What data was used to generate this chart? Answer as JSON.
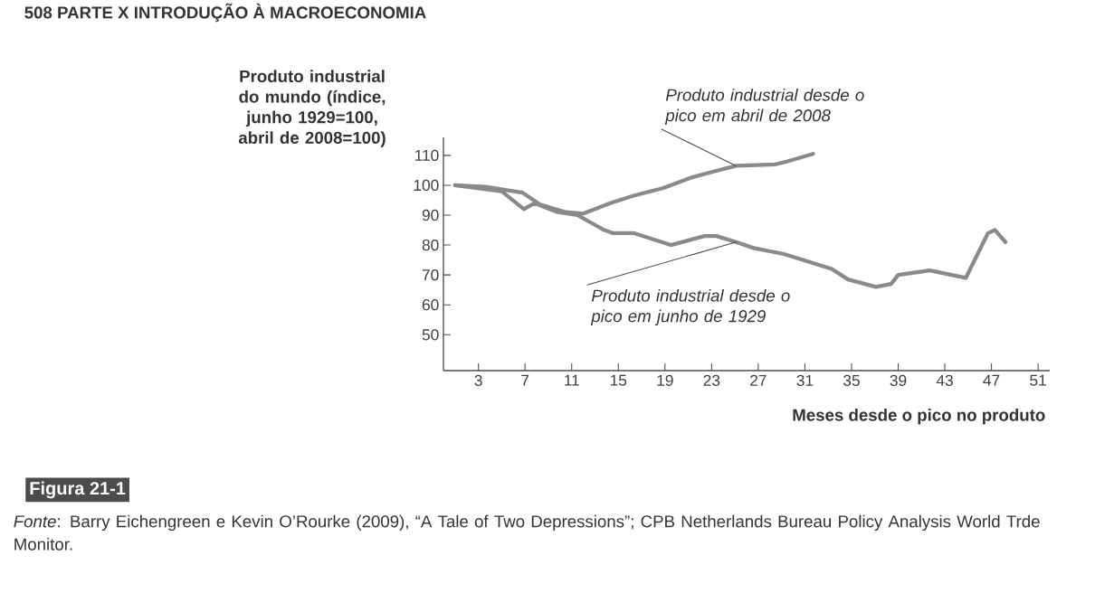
{
  "chart_data": {
    "type": "line",
    "ylabel": "Produto industrial do mundo (índice, junho 1929=100, abril de 2008=100)",
    "xlabel": "Meses desde o pico no produto",
    "x": [
      1,
      5,
      6.9,
      7.8,
      9.8,
      11.5,
      13.8,
      14.5,
      16.3,
      19.5,
      22.4,
      23.4,
      25.1,
      26.6,
      29.2,
      33.3,
      34.7,
      37.1,
      38.4,
      39,
      41.7,
      44.8,
      46.7,
      47.3,
      48.2
    ],
    "series": [
      {
        "name": "Produto industrial desde o pico em abril de 2008",
        "color": "#8a8a8a",
        "x": [
          1,
          3.6,
          6.8,
          8.3,
          10.5,
          12,
          14.3,
          16.3,
          18.8,
          21.2,
          23.1,
          25.1,
          28.5,
          29.5,
          31.7
        ],
        "values": [
          100,
          99.5,
          97.5,
          93.5,
          91,
          90.5,
          94,
          96.5,
          99,
          102.5,
          104.5,
          106.5,
          107,
          108,
          110.5
        ]
      },
      {
        "name": "Produto industrial desde o pico em junho de 1929",
        "color": "#8a8a8a",
        "values": [
          100,
          98,
          92,
          94,
          91,
          90,
          85,
          84,
          84,
          80,
          83,
          83,
          81,
          79,
          77,
          72,
          68.5,
          66,
          67,
          70,
          71.5,
          69,
          84,
          85,
          81
        ]
      }
    ],
    "xlim": [
      0,
      52
    ],
    "xticks": [
      3,
      7,
      11,
      15,
      19,
      23,
      27,
      31,
      35,
      39,
      43,
      47,
      51
    ],
    "ylim": [
      38,
      116
    ],
    "yticks": [
      50,
      60,
      70,
      80,
      90,
      100,
      110
    ],
    "grid": false,
    "annotations": [
      "508 PARTE X INTRODUÇÃO À MACROECONOMIA",
      "Figura 21-1",
      "*Fonte*: Barry Eichengreen e Kevin O’Rourke (2009), “A Tale of Two Depressions”; CPB Netherlands Bureau Policy Analysis World Trde Monitor."
    ]
  }
}
